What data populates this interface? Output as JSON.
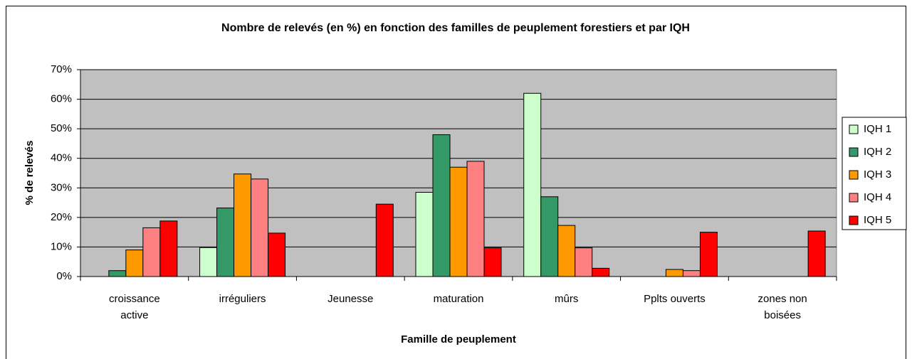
{
  "chart_data": {
    "type": "bar",
    "title": "Nombre de relevés (en %) en fonction des familles de peuplement forestiers et par IQH",
    "x_label": "Famille de peuplement",
    "y_label": "% de relevés",
    "categories": [
      "croissance active",
      "irréguliers",
      "Jeunesse",
      "maturation",
      "mûrs",
      "Pplts ouverts",
      "zones non boisées"
    ],
    "series": [
      {
        "name": "IQH 1",
        "color": "#ccffcc",
        "values": [
          0,
          9.8,
          0,
          28.5,
          62,
          0,
          0
        ]
      },
      {
        "name": "IQH 2",
        "color": "#339966",
        "values": [
          2,
          23.2,
          0,
          48,
          27,
          0,
          0
        ]
      },
      {
        "name": "IQH 3",
        "color": "#ff9900",
        "values": [
          9,
          34.7,
          0,
          37,
          17.3,
          2.4,
          0
        ]
      },
      {
        "name": "IQH 4",
        "color": "#ff8080",
        "values": [
          16.5,
          33,
          0,
          39,
          9.7,
          2,
          0
        ]
      },
      {
        "name": "IQH 5",
        "color": "#ff0000",
        "values": [
          18.8,
          14.7,
          24.5,
          9.7,
          2.8,
          15,
          15.4
        ]
      }
    ],
    "ylim": [
      0,
      70
    ],
    "yticks": [
      {
        "value": 0,
        "label": "0%"
      },
      {
        "value": 10,
        "label": "10%"
      },
      {
        "value": 20,
        "label": "20%"
      },
      {
        "value": 30,
        "label": "30%"
      },
      {
        "value": 40,
        "label": "40%"
      },
      {
        "value": 50,
        "label": "50%"
      },
      {
        "value": 60,
        "label": "60%"
      },
      {
        "value": 70,
        "label": "70%"
      }
    ],
    "grid": true,
    "plot_background": "#c0c0c0",
    "legend": "right"
  }
}
